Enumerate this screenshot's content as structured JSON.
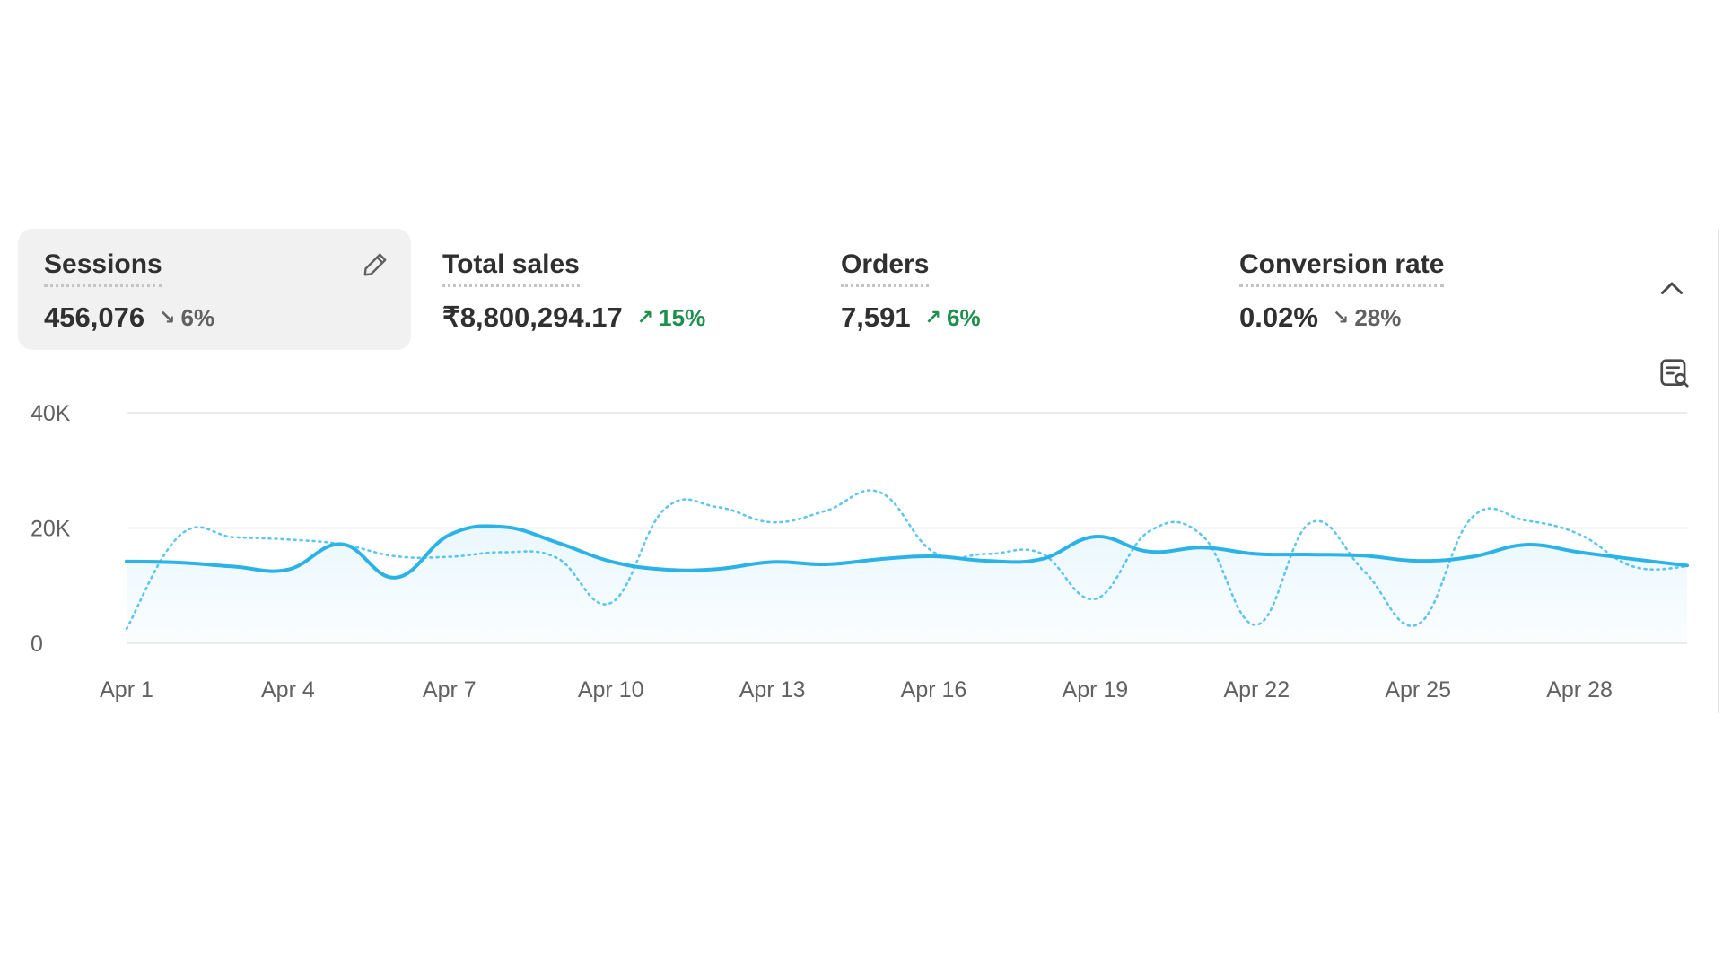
{
  "metrics": [
    {
      "label": "Sessions",
      "value": "456,076",
      "change": "6%",
      "direction": "down"
    },
    {
      "label": "Total sales",
      "value": "₹8,800,294.17",
      "change": "15%",
      "direction": "up"
    },
    {
      "label": "Orders",
      "value": "7,591",
      "change": "6%",
      "direction": "up"
    },
    {
      "label": "Conversion rate",
      "value": "0.02%",
      "change": "28%",
      "direction": "down"
    }
  ],
  "icons": {
    "edit": "pencil-icon",
    "collapse": "chevron-up-icon",
    "explore": "explore-report-icon",
    "down_arrow": "arrow-down-right-icon",
    "up_arrow": "arrow-up-right-icon"
  },
  "colors": {
    "accent": "#2bb3e8",
    "up": "#1f8f4e",
    "down": "#616161",
    "active_card_bg": "#f1f1f1"
  },
  "chart_data": {
    "type": "line",
    "x": [
      "Apr 1",
      "Apr 2",
      "Apr 3",
      "Apr 4",
      "Apr 5",
      "Apr 6",
      "Apr 7",
      "Apr 8",
      "Apr 9",
      "Apr 10",
      "Apr 11",
      "Apr 12",
      "Apr 13",
      "Apr 14",
      "Apr 15",
      "Apr 16",
      "Apr 17",
      "Apr 18",
      "Apr 19",
      "Apr 20",
      "Apr 21",
      "Apr 22",
      "Apr 23",
      "Apr 24",
      "Apr 25",
      "Apr 26",
      "Apr 27",
      "Apr 28",
      "Apr 29",
      "Apr 30"
    ],
    "x_ticks": [
      "Apr 1",
      "Apr 4",
      "Apr 7",
      "Apr 10",
      "Apr 13",
      "Apr 16",
      "Apr 19",
      "Apr 22",
      "Apr 25",
      "Apr 28"
    ],
    "y_ticks": [
      "0",
      "20K",
      "40K"
    ],
    "ylim": [
      0,
      40000
    ],
    "grid": true,
    "series": [
      {
        "style": "solid",
        "values": [
          14200,
          14000,
          13300,
          12800,
          17200,
          11400,
          18800,
          20200,
          17500,
          14200,
          12800,
          12900,
          14100,
          13700,
          14600,
          15100,
          14300,
          14600,
          18500,
          15900,
          16600,
          15500,
          15400,
          15200,
          14300,
          15000,
          17100,
          15800,
          14600,
          13500
        ]
      },
      {
        "style": "dotted",
        "values": [
          2500,
          18800,
          18400,
          18000,
          17200,
          15100,
          15000,
          15800,
          14800,
          7000,
          23300,
          23600,
          21000,
          23000,
          26200,
          15800,
          15500,
          15600,
          7700,
          19400,
          18600,
          3200,
          20900,
          12500,
          3300,
          21800,
          21300,
          18900,
          13300,
          13300
        ]
      }
    ]
  }
}
